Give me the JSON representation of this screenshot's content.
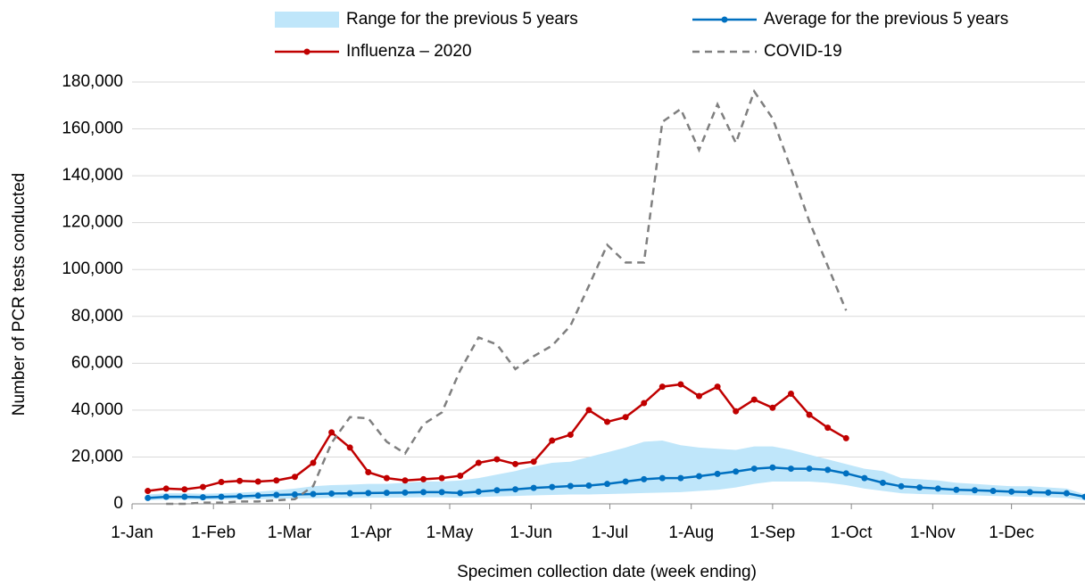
{
  "chart_data": {
    "type": "line",
    "x_label": "Specimen collection date (week ending)",
    "y_label": "Number of PCR tests conducted",
    "x": [
      6,
      13,
      20,
      27,
      34,
      41,
      48,
      55,
      62,
      69,
      76,
      83,
      90,
      97,
      104,
      111,
      118,
      125,
      132,
      139,
      146,
      153,
      160,
      167,
      174,
      181,
      188,
      195,
      202,
      209,
      216,
      223,
      230,
      237,
      244,
      251,
      258,
      265,
      272,
      279,
      286,
      293,
      300,
      307,
      314,
      321,
      328,
      335,
      342,
      349,
      356,
      363
    ],
    "xlim": [
      0,
      363
    ],
    "xticks": [
      {
        "value": 0,
        "label": "1-Jan"
      },
      {
        "value": 31,
        "label": "1-Feb"
      },
      {
        "value": 60,
        "label": "1-Mar"
      },
      {
        "value": 91,
        "label": "1-Apr"
      },
      {
        "value": 121,
        "label": "1-May"
      },
      {
        "value": 152,
        "label": "1-Jun"
      },
      {
        "value": 182,
        "label": "1-Jul"
      },
      {
        "value": 213,
        "label": "1-Aug"
      },
      {
        "value": 244,
        "label": "1-Sep"
      },
      {
        "value": 274,
        "label": "1-Oct"
      },
      {
        "value": 305,
        "label": "1-Nov"
      },
      {
        "value": 335,
        "label": "1-Dec"
      }
    ],
    "ylim": [
      0,
      180000
    ],
    "yticks": [
      0,
      {
        "value": 20000,
        "label": "20,000"
      },
      {
        "value": 40000,
        "label": "40,000"
      },
      {
        "value": 60000,
        "label": "60,000"
      },
      {
        "value": 80000,
        "label": "80,000"
      },
      {
        "value": 100000,
        "label": "100,000"
      },
      {
        "value": 120000,
        "label": "120,000"
      },
      {
        "value": 140000,
        "label": "140,000"
      },
      {
        "value": 160000,
        "label": "160,000"
      },
      {
        "value": 180000,
        "label": "180,000"
      }
    ],
    "grid": true,
    "series": [
      {
        "name": "Range for the previous 5 years",
        "color": "#bfe6fa",
        "style": "band",
        "low": [
          1500,
          1800,
          1800,
          1700,
          1800,
          1900,
          2000,
          2200,
          2300,
          2400,
          2500,
          2500,
          2600,
          2600,
          2700,
          2800,
          2800,
          2600,
          2900,
          3200,
          3400,
          3600,
          3800,
          4000,
          4000,
          4200,
          4400,
          4600,
          4800,
          5000,
          5500,
          6000,
          7000,
          8500,
          9500,
          9500,
          9500,
          9000,
          8000,
          6500,
          5500,
          4500,
          4200,
          4000,
          3800,
          3600,
          3400,
          3200,
          3000,
          2800,
          2500,
          1500
        ],
        "high": [
          4000,
          4500,
          4500,
          4300,
          4500,
          4800,
          5200,
          5800,
          6500,
          7500,
          8000,
          8200,
          8500,
          8500,
          9000,
          9500,
          9500,
          10000,
          11000,
          12500,
          14000,
          16000,
          17500,
          18000,
          20000,
          22000,
          24000,
          26500,
          27000,
          25000,
          24000,
          23500,
          23000,
          24500,
          24500,
          23000,
          21000,
          19000,
          17000,
          15000,
          14000,
          11000,
          10500,
          10000,
          9000,
          8500,
          8000,
          7500,
          7500,
          7000,
          6500,
          4000
        ]
      },
      {
        "name": "Average for the previous 5 years",
        "color": "#0070c0",
        "style": "marker",
        "values": [
          2500,
          3000,
          3000,
          2800,
          3000,
          3200,
          3500,
          3800,
          4000,
          4200,
          4400,
          4500,
          4600,
          4700,
          4800,
          5000,
          5000,
          4600,
          5200,
          5800,
          6200,
          6800,
          7200,
          7600,
          7800,
          8500,
          9500,
          10500,
          11000,
          11000,
          11800,
          12800,
          13800,
          15000,
          15500,
          15000,
          15000,
          14500,
          13000,
          11000,
          9000,
          7500,
          7000,
          6500,
          6000,
          5800,
          5500,
          5200,
          5000,
          4800,
          4500,
          3000
        ]
      },
      {
        "name": "Influenza – 2020",
        "color": "#c00000",
        "style": "marker",
        "values": [
          5500,
          6500,
          6200,
          7200,
          9300,
          9800,
          9500,
          10000,
          11500,
          17500,
          30500,
          24000,
          13500,
          11000,
          10000,
          10500,
          11000,
          12000,
          17500,
          19000,
          17000,
          18000,
          27000,
          29500,
          40000,
          35000,
          37000,
          43000,
          50000,
          51000,
          46000,
          50000,
          39500,
          44500,
          41000,
          47000,
          38000,
          32500,
          28000,
          null,
          null,
          null,
          null,
          null,
          null,
          null,
          null,
          null,
          null,
          null,
          null,
          null
        ]
      },
      {
        "name": "COVID-19",
        "color": "#7f7f7f",
        "style": "dashed",
        "values": [
          null,
          0,
          0,
          500,
          500,
          1000,
          1000,
          1500,
          2000,
          7600,
          26000,
          37000,
          36500,
          26500,
          21500,
          34000,
          39000,
          57000,
          71000,
          68000,
          57500,
          63000,
          67500,
          76000,
          93000,
          110500,
          103000,
          103000,
          163000,
          168500,
          151000,
          170500,
          154000,
          176000,
          164500,
          143000,
          120500,
          101500,
          82500,
          null,
          null,
          null,
          null,
          null,
          null,
          null,
          null,
          null,
          null,
          null,
          null,
          null
        ]
      }
    ]
  }
}
